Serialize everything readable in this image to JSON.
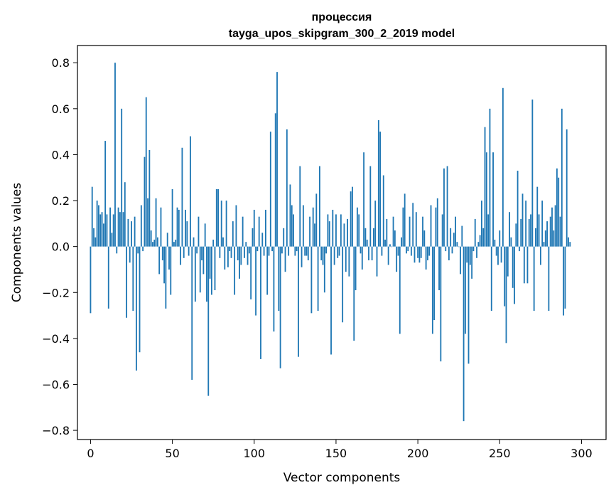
{
  "chart_data": {
    "type": "bar",
    "title": "процессия",
    "subtitle": "tayga_upos_skipgram_300_2_2019 model",
    "xlabel": "Vector components",
    "ylabel": "Components values",
    "xlim": [
      -8,
      315
    ],
    "ylim": [
      -0.84,
      0.875
    ],
    "xticks": [
      0,
      50,
      100,
      150,
      200,
      250,
      300
    ],
    "yticks": [
      -0.8,
      -0.6,
      -0.4,
      -0.2,
      0.0,
      0.2,
      0.4,
      0.6,
      0.8
    ],
    "xtick_labels": [
      "0",
      "50",
      "100",
      "150",
      "200",
      "250",
      "300"
    ],
    "ytick_labels": [
      "−0.8",
      "−0.6",
      "−0.4",
      "−0.2",
      "0.0",
      "0.2",
      "0.4",
      "0.6",
      "0.8"
    ],
    "bar_color": "#1f77b4",
    "grid": false,
    "values": [
      -0.29,
      0.26,
      0.08,
      0.04,
      0.2,
      0.18,
      0.14,
      0.15,
      0.1,
      0.46,
      0.14,
      -0.27,
      0.17,
      0.06,
      0.14,
      0.8,
      -0.03,
      0.17,
      0.15,
      0.6,
      0.15,
      0.28,
      -0.31,
      0.12,
      -0.07,
      0.11,
      -0.28,
      0.13,
      -0.54,
      -0.03,
      -0.46,
      0.18,
      -0.02,
      0.39,
      0.65,
      0.21,
      0.42,
      0.07,
      0.02,
      0.03,
      0.21,
      0.04,
      -0.12,
      0.17,
      -0.06,
      -0.16,
      -0.27,
      0.06,
      -0.1,
      -0.21,
      0.25,
      0.02,
      0.03,
      0.17,
      0.16,
      -0.08,
      0.43,
      -0.05,
      0.16,
      0.11,
      -0.04,
      0.48,
      -0.58,
      0.04,
      -0.24,
      -0.03,
      0.13,
      -0.2,
      -0.06,
      -0.12,
      0.1,
      -0.24,
      -0.65,
      -0.14,
      -0.21,
      0.03,
      -0.19,
      0.25,
      0.25,
      -0.05,
      0.2,
      0.04,
      -0.1,
      0.2,
      -0.09,
      -0.02,
      -0.05,
      0.11,
      -0.21,
      0.18,
      -0.06,
      -0.14,
      -0.08,
      0.13,
      -0.05,
      0.02,
      -0.08,
      -0.03,
      -0.23,
      0.08,
      0.16,
      -0.3,
      -0.02,
      0.13,
      -0.49,
      0.06,
      -0.04,
      0.16,
      -0.21,
      -0.04,
      0.5,
      -0.02,
      -0.37,
      0.58,
      0.76,
      -0.28,
      -0.53,
      -0.03,
      0.08,
      -0.11,
      0.51,
      -0.04,
      0.27,
      0.18,
      0.14,
      -0.04,
      -0.02,
      -0.48,
      0.35,
      -0.09,
      0.18,
      -0.04,
      -0.04,
      -0.06,
      0.13,
      -0.29,
      0.17,
      0.1,
      0.23,
      -0.28,
      0.35,
      -0.06,
      -0.08,
      -0.2,
      -0.03,
      0.14,
      0.11,
      -0.47,
      0.16,
      -0.08,
      0.14,
      -0.05,
      -0.04,
      0.14,
      -0.33,
      0.1,
      -0.11,
      0.12,
      -0.13,
      0.24,
      0.26,
      -0.41,
      -0.19,
      0.17,
      0.14,
      -0.03,
      -0.1,
      0.41,
      0.08,
      0.03,
      -0.06,
      0.35,
      -0.06,
      0.08,
      0.2,
      -0.13,
      0.55,
      0.5,
      -0.04,
      0.31,
      0.03,
      0.12,
      -0.08,
      0.01,
      0.0,
      0.13,
      0.07,
      -0.11,
      -0.04,
      -0.38,
      0.04,
      0.17,
      0.23,
      -0.03,
      -0.02,
      0.13,
      -0.04,
      0.19,
      -0.07,
      0.15,
      -0.05,
      -0.07,
      -0.05,
      0.13,
      0.07,
      -0.1,
      -0.06,
      -0.04,
      0.18,
      -0.38,
      -0.32,
      0.17,
      0.21,
      -0.19,
      -0.5,
      0.14,
      0.34,
      -0.02,
      0.35,
      -0.06,
      0.08,
      -0.03,
      0.06,
      0.13,
      0.02,
      0.0,
      -0.12,
      0.09,
      -0.76,
      -0.38,
      -0.07,
      -0.51,
      -0.08,
      -0.14,
      -0.02,
      0.12,
      -0.05,
      0.02,
      0.05,
      0.2,
      0.08,
      0.52,
      0.41,
      0.14,
      0.6,
      -0.28,
      0.41,
      0.03,
      -0.04,
      -0.08,
      0.07,
      -0.07,
      0.69,
      -0.26,
      -0.42,
      -0.13,
      0.15,
      0.04,
      -0.18,
      -0.25,
      0.1,
      0.33,
      -0.02,
      0.12,
      0.23,
      -0.16,
      0.2,
      -0.16,
      0.12,
      0.14,
      0.64,
      -0.28,
      0.08,
      0.26,
      0.14,
      -0.08,
      0.2,
      0.02,
      0.07,
      0.11,
      -0.28,
      0.13,
      0.17,
      0.07,
      0.18,
      0.34,
      0.3,
      0.13,
      0.6,
      -0.3,
      -0.27,
      0.51,
      0.04,
      0.02
    ]
  }
}
